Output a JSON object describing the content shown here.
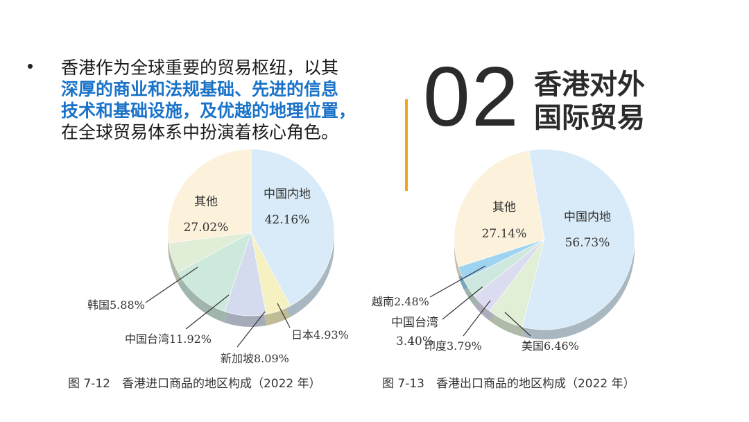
{
  "bullet": {
    "line1": "香港作为全球重要的贸易枢纽，以其",
    "highlight1": "深厚的商业和法规基础、先进的信息",
    "highlight2": "技术和基础设施，及优越的地理位置，",
    "line4": "在全球贸易体系中扮演着核心角色。"
  },
  "section": {
    "number": "02",
    "title_line1": "香港对外",
    "title_line2": "国际贸易"
  },
  "colors": {
    "accent_bar": "#f0a51a",
    "highlight_text": "#1a73c9"
  },
  "chart_data": [
    {
      "type": "pie",
      "caption": "图 7-12　香港进口商品的地区构成（2022 年）",
      "slices": [
        {
          "label": "中国内地",
          "value": 42.16,
          "value_text": "42.16%",
          "color": "#d9ebf8"
        },
        {
          "label": "日本",
          "value": 4.93,
          "value_text": "4.93%",
          "color": "#f5f1c0"
        },
        {
          "label": "新加坡",
          "value": 8.09,
          "value_text": "8.09%",
          "color": "#d5dbee"
        },
        {
          "label": "中国台湾",
          "value": 11.92,
          "value_text": "11.92%",
          "color": "#cde9dc"
        },
        {
          "label": "韩国",
          "value": 5.88,
          "value_text": "5.88%",
          "color": "#e0eed8"
        },
        {
          "label": "其他",
          "value": 27.02,
          "value_text": "27.02%",
          "color": "#fcf2dc"
        }
      ]
    },
    {
      "type": "pie",
      "caption": "图 7-13　香港出口商品的地区构成（2022 年）",
      "slices": [
        {
          "label": "中国内地",
          "value": 56.73,
          "value_text": "56.73%",
          "color": "#d9ebf8"
        },
        {
          "label": "美国",
          "value": 6.46,
          "value_text": "6.46%",
          "color": "#e2efd7"
        },
        {
          "label": "印度",
          "value": 3.79,
          "value_text": "3.79%",
          "color": "#dcdcf0"
        },
        {
          "label": "中国台湾",
          "value": 3.4,
          "value_text": "3.40%",
          "color": "#cfe8df"
        },
        {
          "label": "越南",
          "value": 2.48,
          "value_text": "2.48%",
          "color": "#9fd3f2"
        },
        {
          "label": "其他",
          "value": 27.14,
          "value_text": "27.14%",
          "color": "#fcf2dc"
        }
      ]
    }
  ]
}
